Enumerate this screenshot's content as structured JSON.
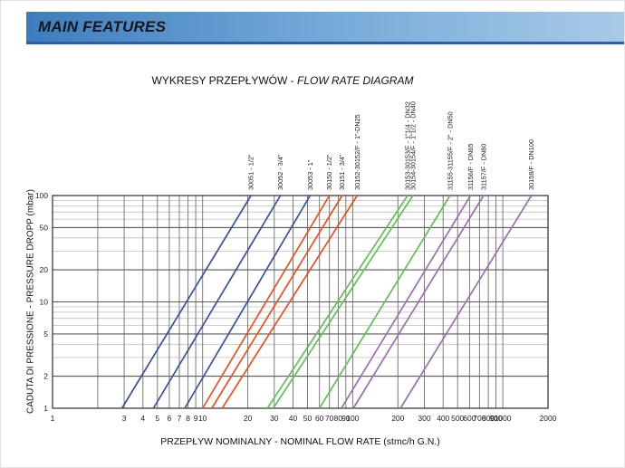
{
  "header": {
    "title": "MAIN FEATURES"
  },
  "title": {
    "normal": "WYKRESY PRZEPŁYWÓW - ",
    "italic": "FLOW RATE DIAGRAM"
  },
  "colors": {
    "blue": "#3a4f9e",
    "red": "#e8501d",
    "green": "#63bd59",
    "purple": "#9a6fb0",
    "grid_major": "#5a5a5a",
    "grid_minor": "#bdbdbd",
    "plot_border": "#3c3c3c",
    "header_border": "#2e5f9e"
  },
  "chart_data": {
    "type": "line",
    "scale": "log-log",
    "x_axis": {
      "label": "PRZEPŁYW NOMINALNY - NOMINAL FLOW RATE (stmc/h G.N.)",
      "min": 1,
      "max": 2000,
      "tick_labels": [
        "1",
        "3",
        "4",
        "5",
        "6",
        "7",
        "8",
        "9",
        "10",
        "20",
        "30",
        "40",
        "50",
        "60",
        "70",
        "80",
        "90",
        "100",
        "200",
        "300",
        "400",
        "500",
        "600",
        "700",
        "800",
        "900",
        "1000",
        "2000"
      ],
      "gridlines": [
        1,
        2,
        3,
        4,
        5,
        6,
        7,
        8,
        9,
        10,
        20,
        30,
        40,
        50,
        60,
        70,
        80,
        90,
        100,
        200,
        300,
        400,
        500,
        600,
        700,
        800,
        900,
        1000,
        2000
      ]
    },
    "y_axis": {
      "label": "CADUTA DI PRESSIONE - PRESSURE DROPP (mbar)",
      "min": 1,
      "max": 100,
      "tick_labels": [
        "100",
        "50",
        "20",
        "10",
        "5",
        "2",
        "1"
      ],
      "major_gridlines": [
        1,
        2,
        5,
        10,
        20,
        50,
        100
      ],
      "minor_gridlines": [
        3,
        4,
        6,
        7,
        8,
        9,
        30,
        40,
        60,
        70,
        80,
        90
      ]
    },
    "series": [
      {
        "model": "30051",
        "label": "30051 - 1/2\"",
        "color_group": "blue",
        "flow_at_1_mbar": 2.9,
        "flow_at_100_mbar": 21
      },
      {
        "model": "30052",
        "label": "30052 - 3/4\"",
        "color_group": "blue",
        "flow_at_1_mbar": 4.7,
        "flow_at_100_mbar": 33
      },
      {
        "model": "30053",
        "label": "30053 - 1\"",
        "color_group": "blue",
        "flow_at_1_mbar": 7.6,
        "flow_at_100_mbar": 52
      },
      {
        "model": "30150",
        "label": "30150 - 1/2\"",
        "color_group": "red",
        "flow_at_1_mbar": 10,
        "flow_at_100_mbar": 70
      },
      {
        "model": "30151",
        "label": "30151 - 3/4\"",
        "color_group": "red",
        "flow_at_1_mbar": 11.5,
        "flow_at_100_mbar": 85
      },
      {
        "model": "30152-30152/F",
        "label": "30152-30152/F - 1\"-DN25",
        "color_group": "red",
        "flow_at_1_mbar": 13.5,
        "flow_at_100_mbar": 107
      },
      {
        "model": "30153-30153/F",
        "label": "30153-30153/F - 1\"1/4 - DN32",
        "color_group": "green",
        "flow_at_1_mbar": 27,
        "flow_at_100_mbar": 232
      },
      {
        "model": "30154-30154/F",
        "label": "30154-30154/F - 1\"1/2 - DN40",
        "color_group": "green",
        "flow_at_1_mbar": 29.5,
        "flow_at_100_mbar": 252
      },
      {
        "model": "31155-31155/F",
        "label": "31155-31155/F - 2\" - DN50",
        "color_group": "green",
        "flow_at_1_mbar": 60,
        "flow_at_100_mbar": 445
      },
      {
        "model": "31156/F",
        "label": "31156/F - DN65",
        "color_group": "purple",
        "flow_at_1_mbar": 84,
        "flow_at_100_mbar": 610
      },
      {
        "model": "31157/F",
        "label": "31157/F - DN80",
        "color_group": "purple",
        "flow_at_1_mbar": 101,
        "flow_at_100_mbar": 745
      },
      {
        "model": "30158/F",
        "label": "30158/F - DN100",
        "color_group": "purple",
        "flow_at_1_mbar": 208,
        "flow_at_100_mbar": 1550
      }
    ]
  }
}
